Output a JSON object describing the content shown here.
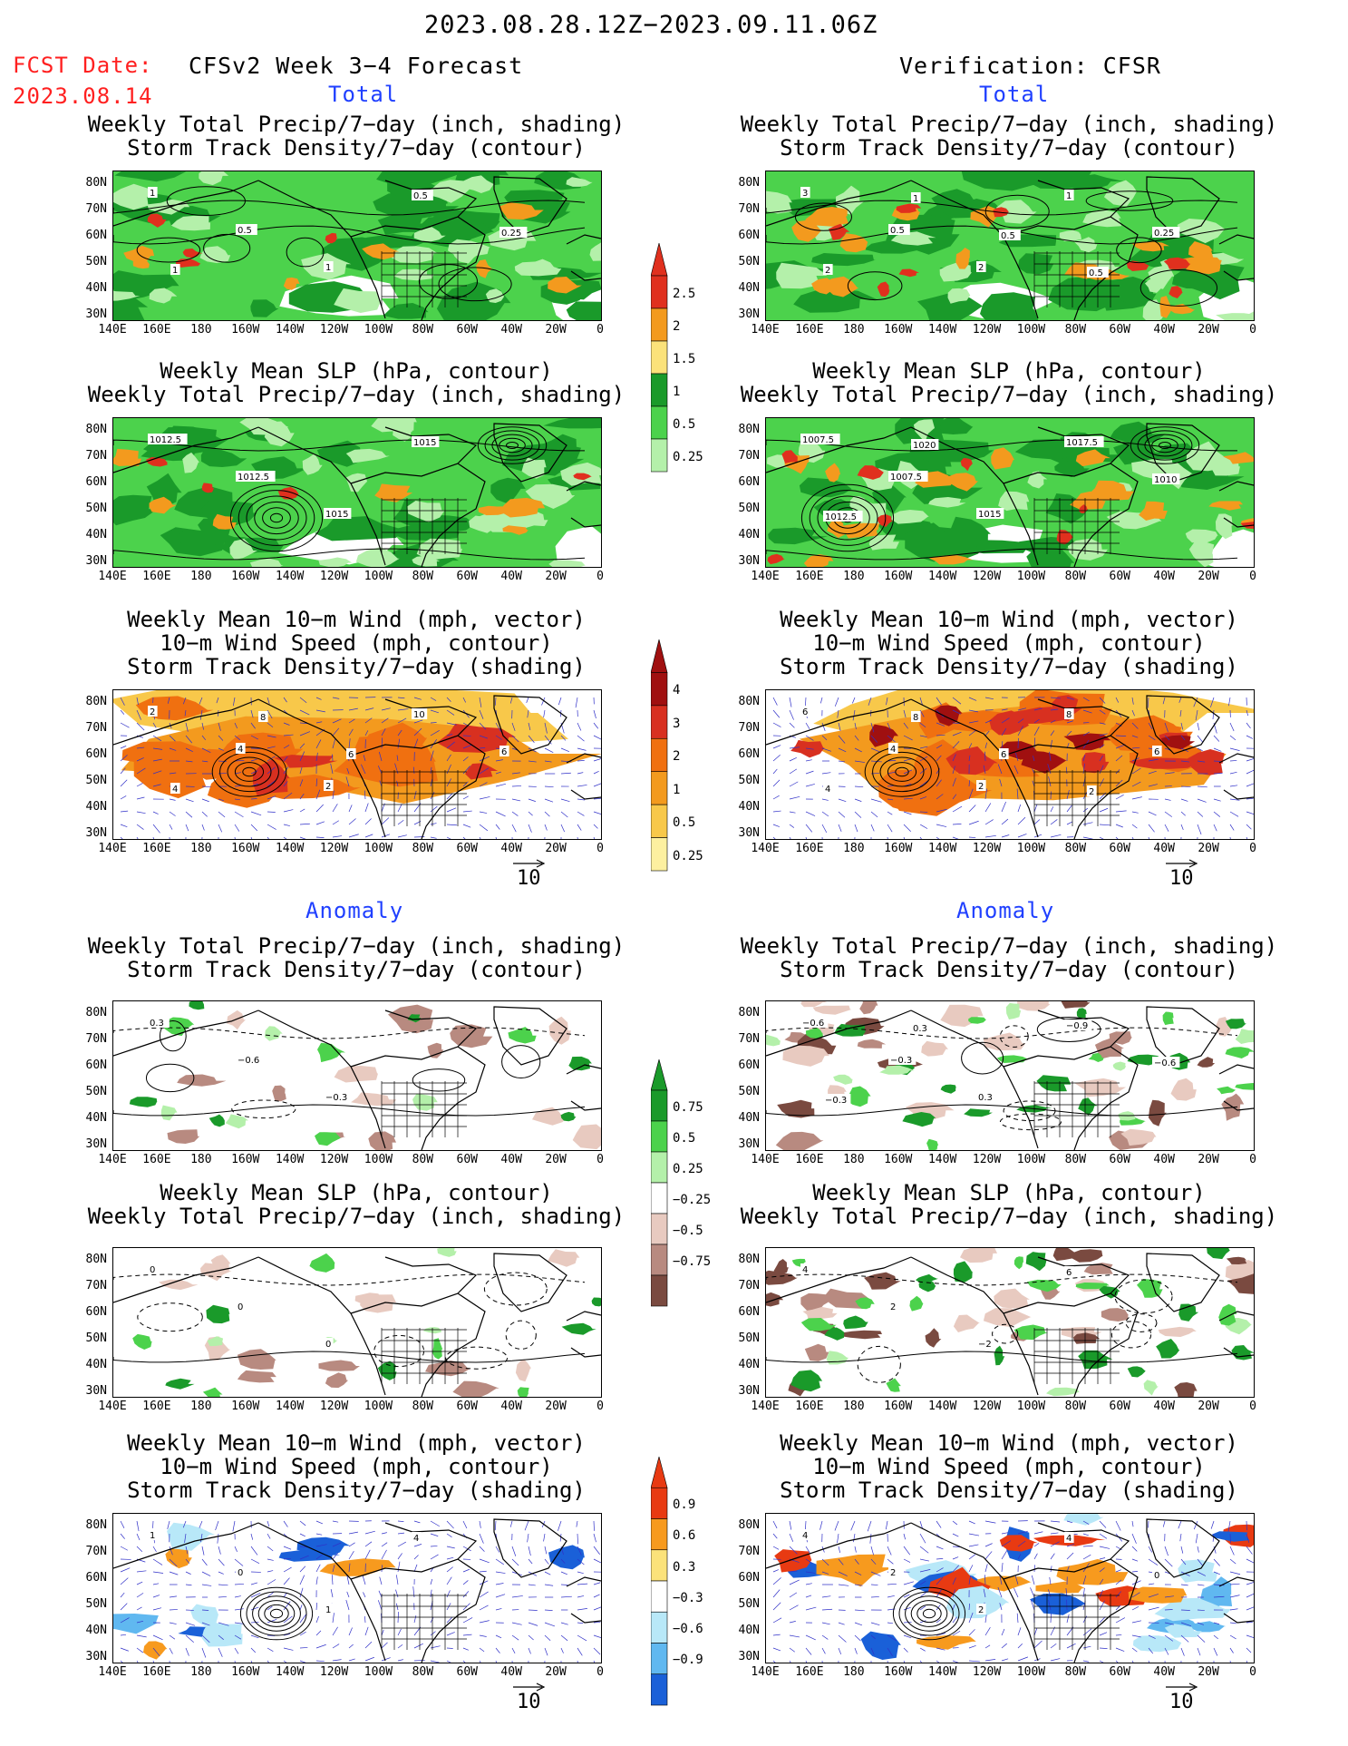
{
  "header": {
    "date_range": "2023.08.28.12Z−2023.09.11.06Z",
    "fcst_label": "FCST Date:",
    "fcst_date": "2023.08.14",
    "forecast_model": "CFSv2 Week 3−4 Forecast",
    "verification": "Verification: CFSR"
  },
  "sections": {
    "total": "Total",
    "anomaly": "Anomaly"
  },
  "titles": {
    "precip_storm": [
      "Weekly Total Precip/7−day (inch, shading)",
      "Storm Track Density/7−day (contour)"
    ],
    "slp_precip": [
      "Weekly Mean SLP (hPa, contour)",
      "Weekly Total Precip/7−day (inch, shading)"
    ],
    "wind_storm": [
      "Weekly Mean 10−m Wind (mph, vector)",
      "10−m Wind Speed (mph, contour)",
      "Storm Track Density/7−day (shading)"
    ]
  },
  "axes": {
    "lat_labels": [
      "80N",
      "70N",
      "60N",
      "50N",
      "40N",
      "30N"
    ],
    "lon_labels": [
      "140E",
      "160E",
      "180",
      "160W",
      "140W",
      "120W",
      "100W",
      "80W",
      "60W",
      "40W",
      "20W",
      "0"
    ]
  },
  "vector_ref": "10",
  "colorbars": {
    "precip_total": {
      "labels": [
        "2.5",
        "2",
        "1.5",
        "1",
        "0.5",
        "0.25"
      ],
      "colors": [
        "#e0301e",
        "#f39a1e",
        "#fbe27a",
        "#1a9a2a",
        "#4cd24c",
        "#b4f0aa"
      ]
    },
    "storm_total": {
      "labels": [
        "4",
        "3",
        "2",
        "1",
        "0.5",
        "0.25"
      ],
      "colors": [
        "#a01010",
        "#d83020",
        "#f07010",
        "#f39a1e",
        "#f8c84a",
        "#fdf0a0"
      ]
    },
    "precip_anom": {
      "labels": [
        "0.75",
        "0.5",
        "0.25",
        "−0.25",
        "−0.5",
        "−0.75"
      ],
      "colors": [
        "#1a9a2a",
        "#4cd24c",
        "#b4f0aa",
        "#ffffff",
        "#e8cac0",
        "#b88a80",
        "#7a4a40"
      ]
    },
    "storm_anom": {
      "labels": [
        "0.9",
        "0.6",
        "0.3",
        "−0.3",
        "−0.6",
        "−0.9"
      ],
      "colors": [
        "#e83a12",
        "#f79a1e",
        "#fbe27a",
        "#ffffff",
        "#b8e8f8",
        "#60b8f0",
        "#1a60d8"
      ]
    }
  },
  "contour_labels": {
    "p1_left": [
      "1",
      "0.5",
      "1",
      "0.5",
      "0.25",
      "1"
    ],
    "p1_right": [
      "3",
      "0.5",
      "2",
      "1",
      "0.25",
      "2",
      "1",
      "0.5",
      "0.5"
    ],
    "p2_left": [
      "1012.5",
      "1012.5",
      "1015",
      "1015"
    ],
    "p2_right": [
      "1007.5",
      "1007.5",
      "1015",
      "1017.5",
      "1010",
      "1012.5",
      "1020"
    ],
    "p3_left": [
      "2",
      "4",
      "2",
      "10",
      "6",
      "4",
      "8",
      "6"
    ],
    "p3_right": [
      "6",
      "4",
      "2",
      "8",
      "6",
      "4",
      "8",
      "6",
      "2"
    ],
    "p4_left": [
      "0.3",
      "−0.6",
      "−0.3"
    ],
    "p4_right": [
      "−0.6",
      "−0.3",
      "0.3",
      "−0.9",
      "−0.6",
      "−0.3",
      "0.3"
    ],
    "p5_left": [
      "0",
      "0",
      "0"
    ],
    "p5_right": [
      "4",
      "2",
      "−2",
      "6"
    ],
    "p6_left": [
      "1",
      "0",
      "1",
      "4"
    ],
    "p6_right": [
      "4",
      "2",
      "2",
      "4",
      "0"
    ]
  }
}
